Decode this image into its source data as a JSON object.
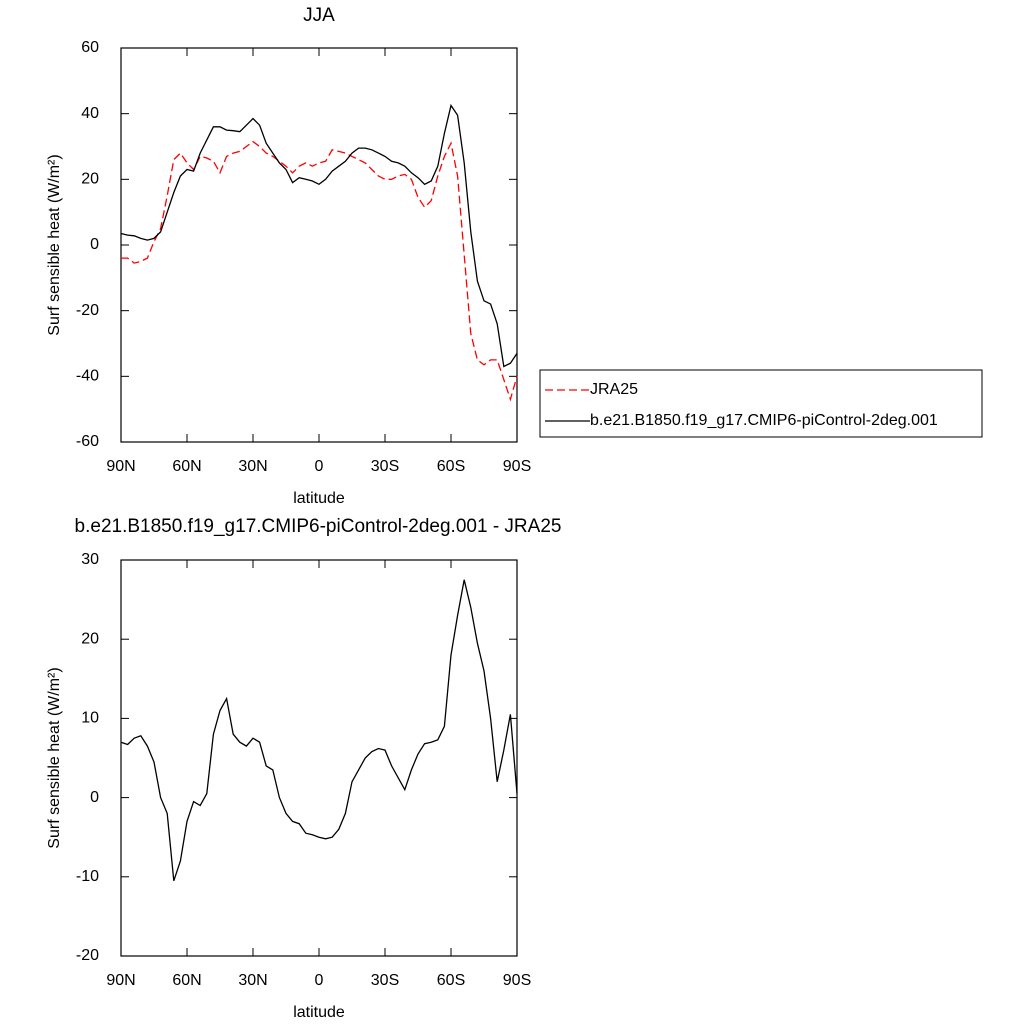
{
  "chart_data": [
    {
      "type": "line",
      "title": "JJA",
      "xlabel": "latitude",
      "ylabel": "Surf sensible heat (W/m²)",
      "xlim": [
        90,
        -90
      ],
      "ylim": [
        -60,
        60
      ],
      "xticks": [
        {
          "value": 90,
          "label": "90N"
        },
        {
          "value": 60,
          "label": "60N"
        },
        {
          "value": 30,
          "label": "30N"
        },
        0,
        {
          "value": -30,
          "label": "30S"
        },
        {
          "value": -60,
          "label": "60S"
        },
        {
          "value": -90,
          "label": "90S"
        }
      ],
      "yticks": [
        -60,
        -40,
        -20,
        0,
        20,
        40,
        60
      ],
      "legend": "right",
      "x": [
        90,
        87,
        84,
        81,
        78,
        75,
        72,
        69,
        66,
        63,
        60,
        57,
        54,
        51,
        48,
        45,
        42,
        39,
        36,
        33,
        30,
        27,
        24,
        21,
        18,
        15,
        12,
        9,
        6,
        3,
        0,
        -3,
        -6,
        -9,
        -12,
        -15,
        -18,
        -21,
        -24,
        -27,
        -30,
        -33,
        -36,
        -39,
        -42,
        -45,
        -48,
        -51,
        -54,
        -57,
        -60,
        -63,
        -66,
        -69,
        -72,
        -75,
        -78,
        -81,
        -84,
        -87,
        -90
      ],
      "series": [
        {
          "name": "JRA25",
          "color": "#ff0000",
          "dashed": true,
          "values": [
            -4,
            -4,
            -5.5,
            -5,
            -4,
            1,
            5,
            15,
            26,
            28,
            25,
            23,
            27,
            26.5,
            25.5,
            22,
            27,
            28,
            28.5,
            30,
            31.5,
            30,
            28,
            27,
            25.5,
            24,
            22,
            24,
            25,
            24,
            25,
            25.5,
            29,
            28.5,
            28,
            27,
            26,
            25,
            23,
            21,
            20,
            20,
            21,
            21.5,
            20,
            14.5,
            11.5,
            13.5,
            21,
            27,
            31,
            21,
            -3,
            -27,
            -35,
            -36.5,
            -35,
            -35,
            -41,
            -47,
            -40
          ]
        },
        {
          "name": "b.e21.B1850.f19_g17.CMIP6-piControl-2deg.001",
          "color": "#000000",
          "dashed": false,
          "values": [
            3.5,
            3,
            2.8,
            2,
            1.5,
            2,
            4,
            10,
            16,
            21,
            23,
            22.5,
            28,
            32,
            36,
            36,
            35,
            34.8,
            34.5,
            36.5,
            38.5,
            36.5,
            31,
            28,
            25,
            23,
            19,
            20.5,
            20,
            19.5,
            18.5,
            20,
            22.5,
            24,
            25.5,
            28,
            29.5,
            29.5,
            29,
            28,
            27,
            25.5,
            25,
            24,
            22,
            20.5,
            18.5,
            19.5,
            24,
            34,
            42.5,
            39.5,
            25,
            4,
            -11,
            -17,
            -18,
            -24,
            -37,
            -36,
            -33
          ]
        }
      ]
    },
    {
      "type": "line",
      "title": "b.e21.B1850.f19_g17.CMIP6-piControl-2deg.001 - JRA25",
      "xlabel": "latitude",
      "ylabel": "Surf sensible heat (W/m²)",
      "xlim": [
        90,
        -90
      ],
      "ylim": [
        -20,
        30
      ],
      "xticks": [
        {
          "value": 90,
          "label": "90N"
        },
        {
          "value": 60,
          "label": "60N"
        },
        {
          "value": 30,
          "label": "30N"
        },
        0,
        {
          "value": -30,
          "label": "30S"
        },
        {
          "value": -60,
          "label": "60S"
        },
        {
          "value": -90,
          "label": "90S"
        }
      ],
      "yticks": [
        -20,
        -10,
        0,
        10,
        20,
        30
      ],
      "x": [
        90,
        87,
        84,
        81,
        78,
        75,
        72,
        69,
        66,
        63,
        60,
        57,
        54,
        51,
        48,
        45,
        42,
        39,
        36,
        33,
        30,
        27,
        24,
        21,
        18,
        15,
        12,
        9,
        6,
        3,
        0,
        -3,
        -6,
        -9,
        -12,
        -15,
        -18,
        -21,
        -24,
        -27,
        -30,
        -33,
        -36,
        -39,
        -42,
        -45,
        -48,
        -51,
        -54,
        -57,
        -60,
        -63,
        -66,
        -69,
        -72,
        -75,
        -78,
        -81,
        -84,
        -87,
        -90
      ],
      "series": [
        {
          "color": "#000000",
          "dashed": false,
          "values": [
            7,
            6.7,
            7.5,
            7.8,
            6.5,
            4.5,
            0,
            -2,
            -10.5,
            -8,
            -3,
            -0.5,
            -1,
            0.5,
            8,
            11,
            12.5,
            8,
            7,
            6.5,
            7.5,
            7,
            4,
            3.5,
            0,
            -2,
            -3,
            -3.3,
            -4.5,
            -4.7,
            -5,
            -5.2,
            -5,
            -4,
            -2,
            2,
            3.5,
            5,
            5.8,
            6.2,
            6,
            4,
            2.5,
            1,
            3.5,
            5.5,
            6.8,
            7,
            7.3,
            9,
            18,
            23,
            27.5,
            24,
            19.5,
            16,
            10,
            2,
            6,
            10.5,
            0.5
          ]
        }
      ]
    }
  ]
}
